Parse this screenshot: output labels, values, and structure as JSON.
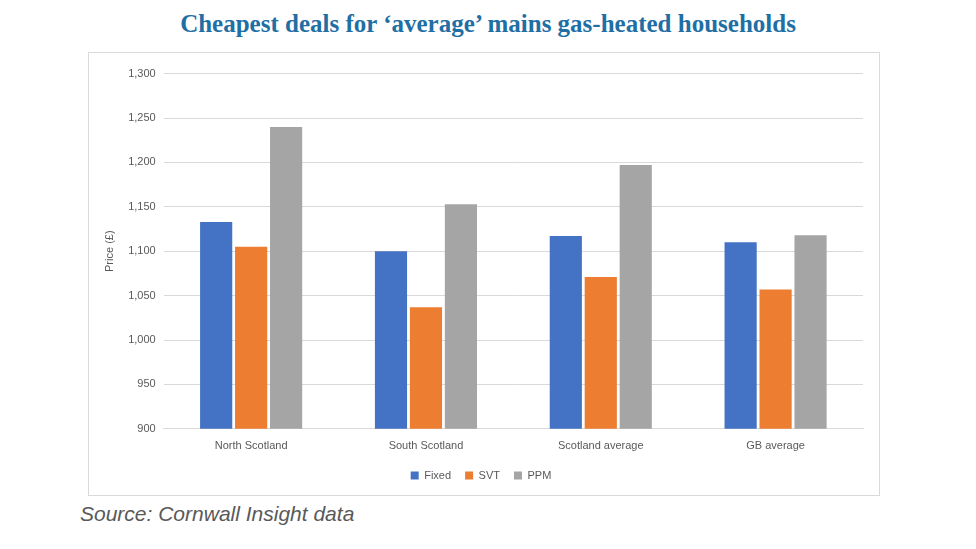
{
  "chart_data": {
    "type": "bar",
    "title": "Cheapest deals for ‘average’ mains gas-heated households",
    "y_label": "Price (£)",
    "annotation": "Source: Cornwall Insight data",
    "categories": [
      "North Scotland",
      "South Scotland",
      "Scotland average",
      "GB average"
    ],
    "series": [
      {
        "name": "Fixed",
        "color": "#4472c4",
        "values": [
          1133,
          1100,
          1117,
          1110
        ]
      },
      {
        "name": "SVT",
        "color": "#ed7d31",
        "values": [
          1105,
          1037,
          1071,
          1057
        ]
      },
      {
        "name": "PPM",
        "color": "#a5a5a5",
        "values": [
          1240,
          1153,
          1197,
          1118
        ]
      }
    ],
    "ylim": [
      900,
      1300
    ],
    "yticks": [
      900,
      950,
      {
        "value": 1000,
        "label": "1,000"
      },
      {
        "value": 1050,
        "label": "1,050"
      },
      {
        "value": 1100,
        "label": "1,100"
      },
      {
        "value": 1150,
        "label": "1,150"
      },
      {
        "value": 1200,
        "label": "1,200"
      },
      {
        "value": 1250,
        "label": "1,250"
      },
      {
        "value": 1300,
        "label": "1,300"
      }
    ],
    "grid": true,
    "legend": "bottom"
  }
}
